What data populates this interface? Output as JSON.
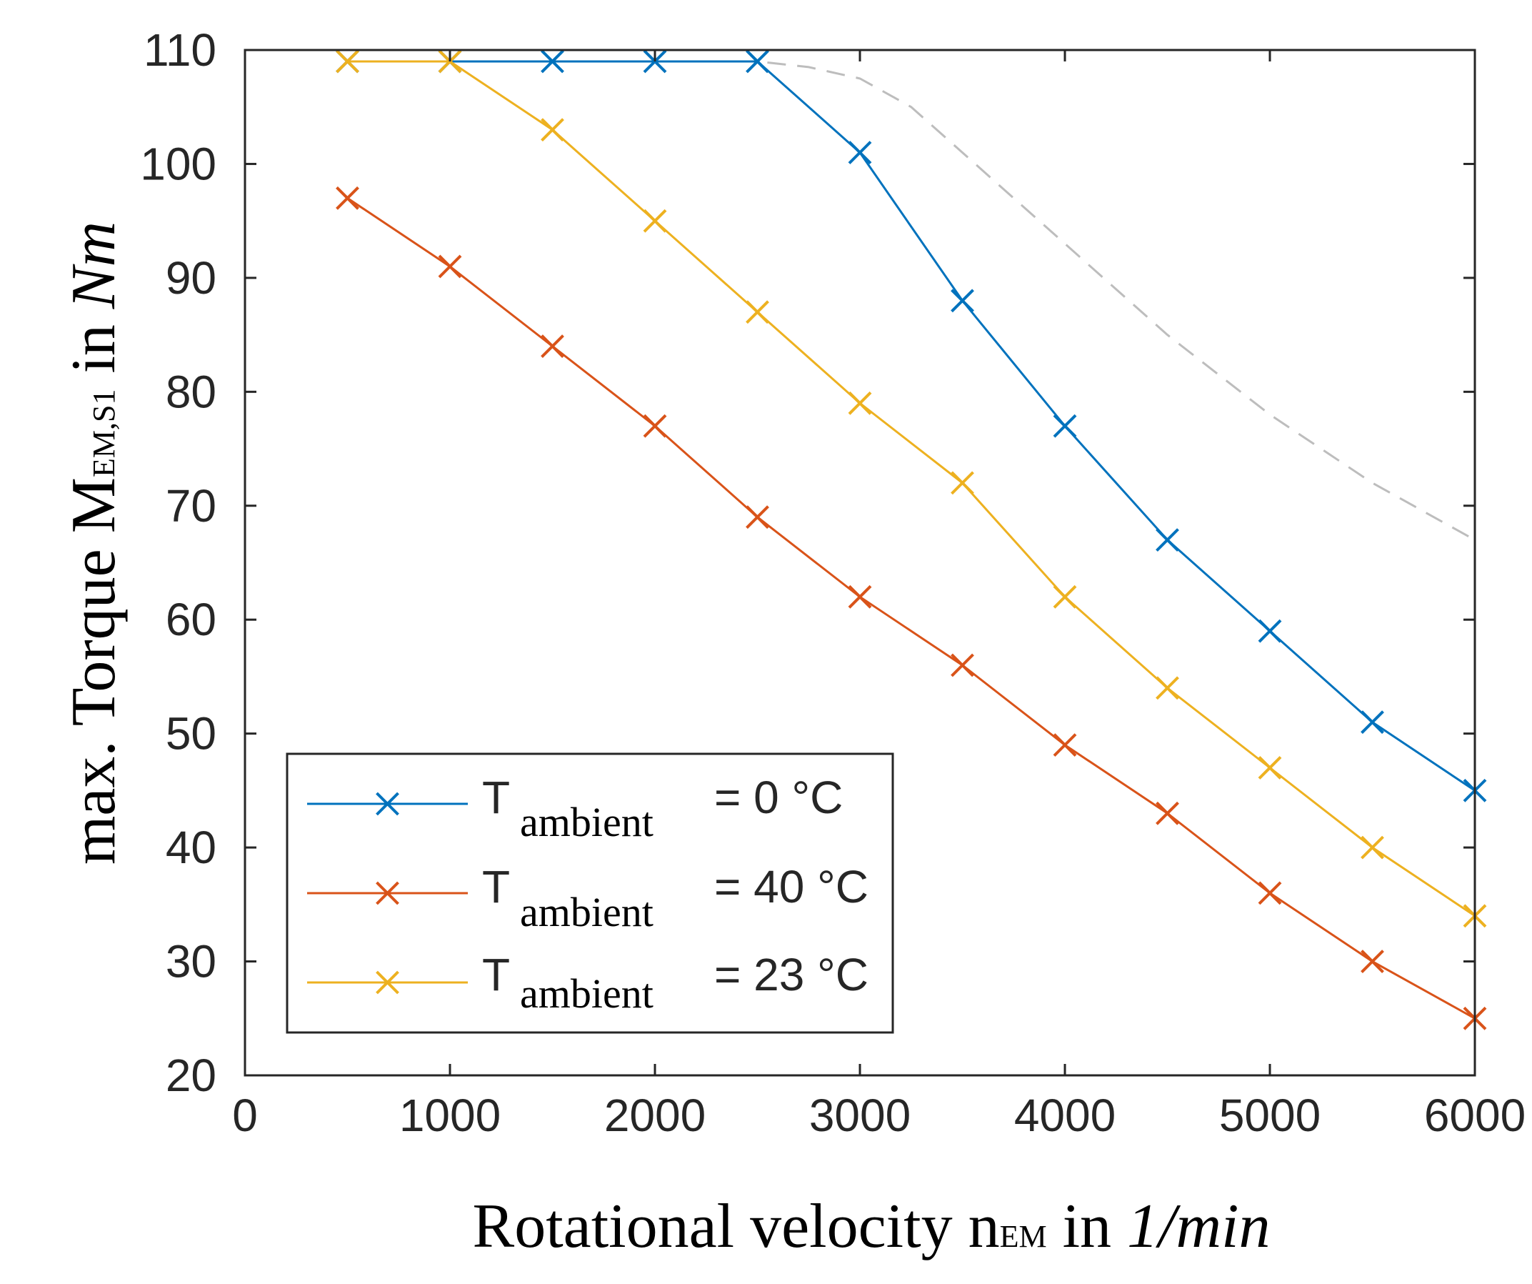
{
  "chart_data": {
    "type": "line",
    "xlabel": {
      "main": "Rotational velocity n",
      "sub": "EM",
      "unit_prefix": " in ",
      "unit": "1/min"
    },
    "ylabel": {
      "main": "max. Torque M",
      "sub": "EM,S1",
      "unit_prefix": " in ",
      "unit": "Nm"
    },
    "xlim": [
      0,
      6000
    ],
    "ylim": [
      20,
      110
    ],
    "xticks": [
      "0",
      "1000",
      "2000",
      "3000",
      "4000",
      "5000",
      "6000"
    ],
    "yticks": [
      "20",
      "30",
      "40",
      "50",
      "60",
      "70",
      "80",
      "90",
      "100",
      "110"
    ],
    "grid": false,
    "legend_position": "bottom-left",
    "series": [
      {
        "name": "T ambient = 0 °C",
        "legend_main": "T",
        "legend_sub": "ambient",
        "legend_value": "= 0 °C",
        "color": "#0072BD",
        "marker": "x",
        "x": [
          500,
          1000,
          1500,
          2000,
          2500,
          3000,
          3500,
          4000,
          4500,
          5000,
          5500,
          6000
        ],
        "y": [
          109,
          109,
          109,
          109,
          109,
          101,
          88,
          77,
          67,
          59,
          51,
          45
        ]
      },
      {
        "name": "T ambient = 40 °C",
        "legend_main": "T",
        "legend_sub": "ambient",
        "legend_value": "= 40 °C",
        "color": "#D95319",
        "marker": "x",
        "x": [
          500,
          1000,
          1500,
          2000,
          2500,
          3000,
          3500,
          4000,
          4500,
          5000,
          5500,
          6000
        ],
        "y": [
          97,
          91,
          84,
          77,
          69,
          62,
          56,
          49,
          43,
          36,
          30,
          25
        ]
      },
      {
        "name": "T ambient = 23 °C",
        "legend_main": "T",
        "legend_sub": "ambient",
        "legend_value": "= 23 °C",
        "color": "#EDB120",
        "marker": "x",
        "x": [
          500,
          1000,
          1500,
          2000,
          2500,
          3000,
          3500,
          4000,
          4500,
          5000,
          5500,
          6000
        ],
        "y": [
          109,
          109,
          103,
          95,
          87,
          79,
          72,
          62,
          54,
          47,
          40,
          34
        ]
      }
    ],
    "reference_curve": {
      "style": "dashed",
      "color": "#BDBDBD",
      "x": [
        500,
        1000,
        1500,
        2000,
        2500,
        2750,
        3000,
        3250,
        3500,
        3750,
        4000,
        4500,
        5000,
        5500,
        6000
      ],
      "y": [
        109,
        109,
        109,
        109,
        109,
        108.5,
        107.5,
        105,
        101,
        97,
        93,
        85,
        78,
        72,
        67
      ]
    }
  }
}
